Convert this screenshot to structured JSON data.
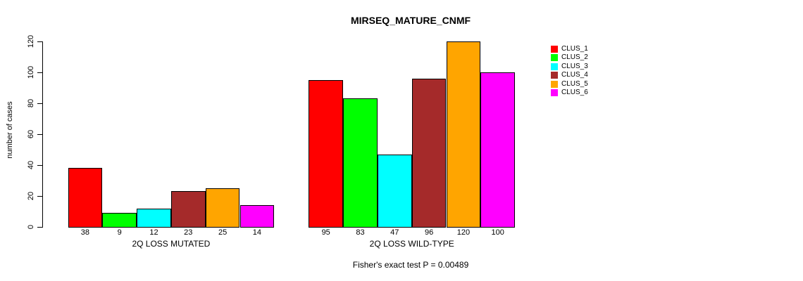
{
  "chart_data": {
    "type": "bar",
    "title": "MIRSEQ_MATURE_CNMF",
    "ylabel": "number of cases",
    "xlabel": "",
    "ylim": [
      0,
      120
    ],
    "yticks": [
      0,
      20,
      40,
      60,
      80,
      100,
      120
    ],
    "grid": false,
    "legend_position": "right-outside",
    "categories": [
      "2Q LOSS MUTATED",
      "2Q LOSS WILD-TYPE"
    ],
    "series": [
      {
        "name": "CLUS_1",
        "color": "#FF0000",
        "values": [
          38,
          95
        ]
      },
      {
        "name": "CLUS_2",
        "color": "#00FF00",
        "values": [
          9,
          83
        ]
      },
      {
        "name": "CLUS_3",
        "color": "#00FFFF",
        "values": [
          12,
          47
        ]
      },
      {
        "name": "CLUS_4",
        "color": "#A52A2A",
        "values": [
          23,
          96
        ]
      },
      {
        "name": "CLUS_5",
        "color": "#FFA500",
        "values": [
          25,
          120
        ]
      },
      {
        "name": "CLUS_6",
        "color": "#FF00FF",
        "values": [
          14,
          100
        ]
      }
    ],
    "bar_value_labels_shown": true,
    "annotation": "Fisher's exact test P = 0.00489"
  }
}
